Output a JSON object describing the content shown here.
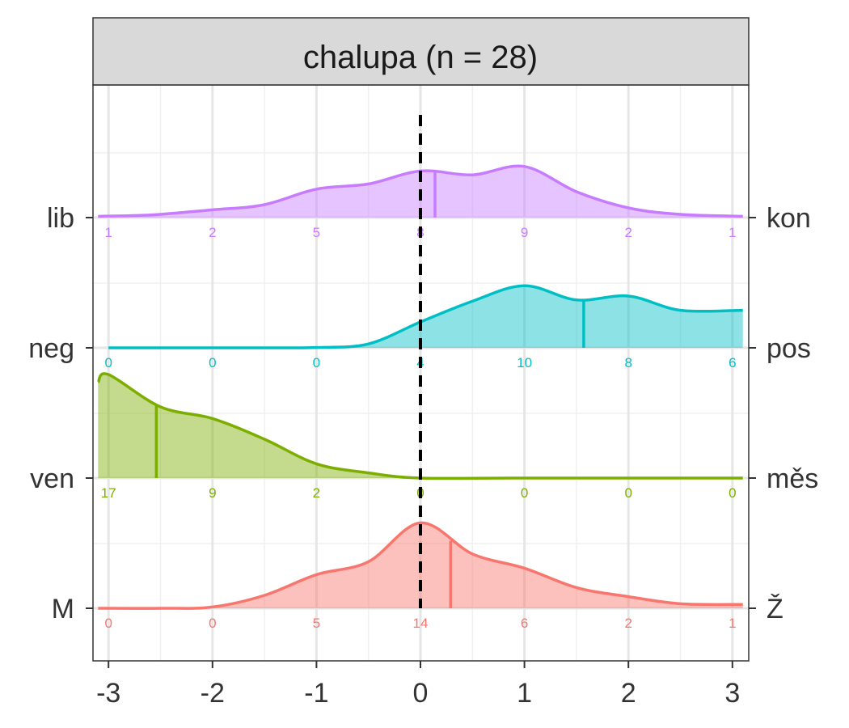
{
  "chart_data": {
    "type": "ridgeline-density",
    "title": "chalupa (n = 28)",
    "x_ticks": [
      -3,
      -2,
      -1,
      0,
      1,
      2,
      3
    ],
    "xlim": [
      -3.1,
      3.1
    ],
    "reference_line_x": 0,
    "grid": true,
    "series": [
      {
        "left_label": "lib",
        "right_label": "kon",
        "color": "#C77CFF",
        "counts_at_x": [
          -3,
          -2,
          -1,
          0,
          1,
          2,
          3
        ],
        "counts": [
          1,
          2,
          5,
          8,
          9,
          2,
          1
        ],
        "mean": 0.14,
        "density": [
          [
            -3.1,
            0.02
          ],
          [
            -2.6,
            0.04
          ],
          [
            -2.0,
            0.12
          ],
          [
            -1.5,
            0.2
          ],
          [
            -1.0,
            0.44
          ],
          [
            -0.5,
            0.52
          ],
          [
            0.0,
            0.72
          ],
          [
            0.5,
            0.66
          ],
          [
            1.0,
            0.79
          ],
          [
            1.5,
            0.4
          ],
          [
            2.0,
            0.15
          ],
          [
            2.5,
            0.05
          ],
          [
            3.1,
            0.02
          ]
        ]
      },
      {
        "left_label": "neg",
        "right_label": "pos",
        "color": "#00BFC4",
        "counts_at_x": [
          -3,
          -2,
          -1,
          0,
          1,
          2,
          3
        ],
        "counts": [
          0,
          0,
          0,
          4,
          10,
          8,
          6
        ],
        "mean": 1.57,
        "density": [
          [
            -3.0,
            0.0
          ],
          [
            -1.5,
            0.0
          ],
          [
            -1.0,
            0.005
          ],
          [
            -0.5,
            0.06
          ],
          [
            0.0,
            0.4
          ],
          [
            0.5,
            0.72
          ],
          [
            1.0,
            0.96
          ],
          [
            1.5,
            0.74
          ],
          [
            2.0,
            0.8
          ],
          [
            2.5,
            0.58
          ],
          [
            3.1,
            0.58
          ]
        ]
      },
      {
        "left_label": "ven",
        "right_label": "měs",
        "color": "#7CAE00",
        "counts_at_x": [
          -3,
          -2,
          -1,
          0,
          1,
          2,
          3
        ],
        "counts": [
          17,
          9,
          2,
          0,
          0,
          0,
          0
        ],
        "mean": -2.54,
        "density": [
          [
            -3.1,
            1.48
          ],
          [
            -3.0,
            1.6
          ],
          [
            -2.5,
            1.1
          ],
          [
            -2.0,
            0.92
          ],
          [
            -1.5,
            0.6
          ],
          [
            -1.0,
            0.22
          ],
          [
            -0.5,
            0.08
          ],
          [
            0.0,
            0.0
          ],
          [
            1.0,
            0.0
          ],
          [
            3.1,
            0.0
          ]
        ]
      },
      {
        "left_label": "M",
        "right_label": "Ž",
        "color": "#F8766D",
        "counts_at_x": [
          -3,
          -2,
          -1,
          0,
          1,
          2,
          3
        ],
        "counts": [
          0,
          0,
          5,
          14,
          6,
          2,
          1
        ],
        "mean": 0.29,
        "density": [
          [
            -3.1,
            0.0
          ],
          [
            -2.5,
            0.0
          ],
          [
            -2.0,
            0.02
          ],
          [
            -1.5,
            0.2
          ],
          [
            -1.0,
            0.52
          ],
          [
            -0.5,
            0.72
          ],
          [
            0.0,
            1.32
          ],
          [
            0.5,
            0.84
          ],
          [
            1.0,
            0.62
          ],
          [
            1.5,
            0.32
          ],
          [
            2.0,
            0.18
          ],
          [
            2.5,
            0.07
          ],
          [
            3.1,
            0.06
          ]
        ]
      }
    ]
  }
}
